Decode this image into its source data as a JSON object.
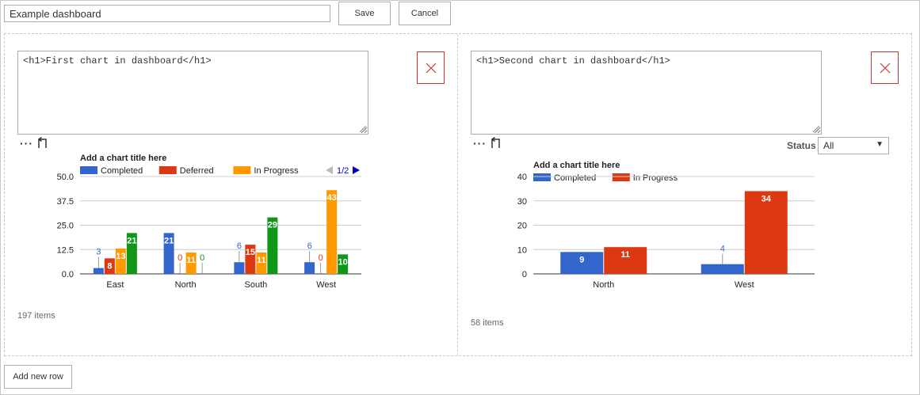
{
  "toolbar": {
    "dashboard_title": "Example dashboard",
    "save_label": "Save",
    "cancel_label": "Cancel"
  },
  "panels": [
    {
      "editor_text": "<h1>First chart in dashboard</h1>",
      "more_icon": "ellipsis-icon",
      "undo_icon": "undo-icon",
      "delete_icon": "close-icon",
      "items_count": "197 items"
    },
    {
      "editor_text": "<h1>Second chart in dashboard</h1>",
      "more_icon": "ellipsis-icon",
      "undo_icon": "undo-icon",
      "delete_icon": "close-icon",
      "items_count": "58 items",
      "filter": {
        "label": "Status",
        "value": "All"
      }
    }
  ],
  "footer": {
    "add_row_label": "Add new row"
  },
  "colors": {
    "completed": "#3366cc",
    "deferred": "#dc3912",
    "in_progress": "#ff9900",
    "green_series": "#109618",
    "delete_red": "#d13438",
    "pager_blue": "#0000cc"
  },
  "chart_data": [
    {
      "type": "bar",
      "title": "Add a chart title here",
      "categories": [
        "East",
        "North",
        "South",
        "West"
      ],
      "series": [
        {
          "name": "Completed",
          "color": "#3366cc",
          "values": [
            3,
            21,
            6,
            6
          ]
        },
        {
          "name": "Deferred",
          "color": "#dc3912",
          "values": [
            8,
            0,
            15,
            0
          ]
        },
        {
          "name": "In Progress",
          "color": "#ff9900",
          "values": [
            13,
            11,
            11,
            43
          ]
        },
        {
          "name": "",
          "color": "#109618",
          "values": [
            21,
            0,
            29,
            10
          ]
        }
      ],
      "ylim": [
        0,
        50
      ],
      "yticks": [
        "0.0",
        "12.5",
        "25.0",
        "37.5",
        "50.0"
      ],
      "legend_placement": "top",
      "legend_pager": "1/2",
      "grid": true
    },
    {
      "type": "bar",
      "title": "Add a chart title here",
      "categories": [
        "North",
        "West"
      ],
      "series": [
        {
          "name": "Completed",
          "color": "#3366cc",
          "values": [
            9,
            4
          ]
        },
        {
          "name": "In Progress",
          "color": "#dc3912",
          "values": [
            11,
            34
          ]
        }
      ],
      "ylim": [
        0,
        40
      ],
      "yticks": [
        "0",
        "10",
        "20",
        "30",
        "40"
      ],
      "legend_placement": "top",
      "grid": true
    }
  ]
}
